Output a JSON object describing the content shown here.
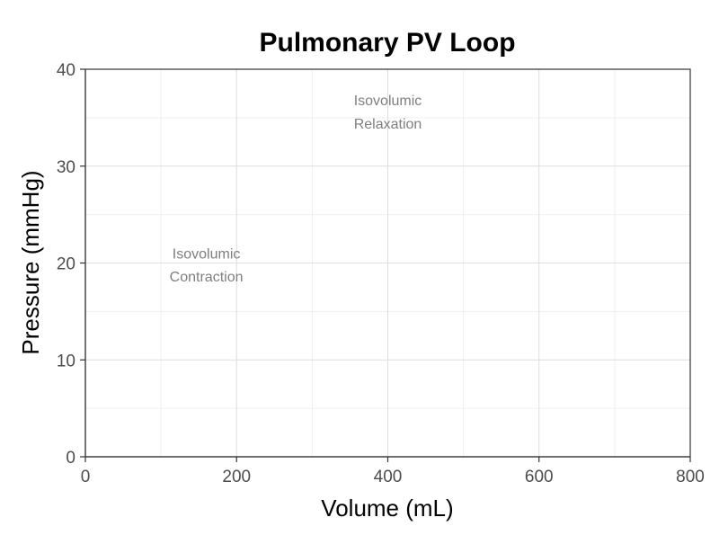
{
  "chart_data": {
    "type": "line",
    "title": "Pulmonary PV Loop",
    "xlabel": "Volume (mL)",
    "ylabel": "Pressure (mmHg)",
    "xlim": [
      0,
      800
    ],
    "ylim": [
      0,
      40
    ],
    "x_ticks": [
      0,
      200,
      400,
      600,
      800
    ],
    "y_ticks": [
      0,
      10,
      20,
      30,
      40
    ],
    "x_minor": [
      100,
      300,
      500,
      700
    ],
    "y_minor": [
      5,
      15,
      25,
      35
    ],
    "grid": true,
    "series": [],
    "annotations": [
      {
        "lines": [
          "Isovolumic",
          "Contraction"
        ],
        "x": 160,
        "y": 19.8
      },
      {
        "lines": [
          "Isovolumic",
          "Relaxation"
        ],
        "x": 400,
        "y": 35.6
      }
    ],
    "colors": {
      "grid_major": "#dedede",
      "grid_minor": "#efefef",
      "axis": "#333333",
      "tick_label": "#4d4d4d",
      "annotation": "#7f7f7f",
      "title": "#000000"
    }
  }
}
